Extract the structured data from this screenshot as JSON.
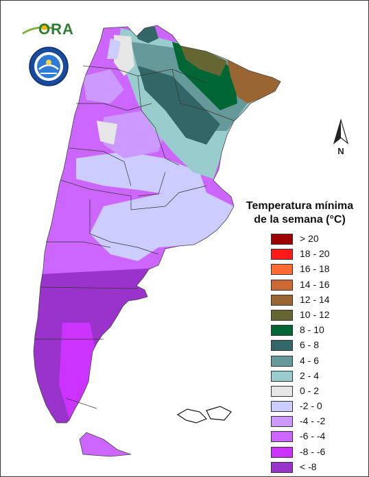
{
  "logos": {
    "ora": {
      "text": "ORA",
      "colors": {
        "text": "#2e7d32",
        "sun": "#f2b705"
      }
    },
    "smn": {
      "colors": {
        "ring": "#1a4a9c",
        "inner": "#2d7bd4"
      }
    }
  },
  "legend": {
    "title_line1": "Temperatura mínima",
    "title_line2": "de la semana (°C)",
    "items": [
      {
        "label": "> 20",
        "color": "#9c0000"
      },
      {
        "label": "18 - 20",
        "color": "#ff1a1a"
      },
      {
        "label": "16 - 18",
        "color": "#ff6a33"
      },
      {
        "label": "14 - 16",
        "color": "#cc6633"
      },
      {
        "label": "12 - 14",
        "color": "#996633"
      },
      {
        "label": "10 - 12",
        "color": "#666633"
      },
      {
        "label": "8 - 10",
        "color": "#006633"
      },
      {
        "label": "6 - 8",
        "color": "#336666"
      },
      {
        "label": "4 - 6",
        "color": "#669999"
      },
      {
        "label": "2 - 4",
        "color": "#99cccc"
      },
      {
        "label": "0 - 2",
        "color": "#e6e6e6"
      },
      {
        "label": "-2 - 0",
        "color": "#ccccff"
      },
      {
        "label": "-4 - -2",
        "color": "#cc99ff"
      },
      {
        "label": "-6 - -4",
        "color": "#cc66ff"
      },
      {
        "label": "-8 - -6",
        "color": "#cc33ff"
      },
      {
        "label": "< -8",
        "color": "#9933cc"
      }
    ]
  },
  "north_arrow": {
    "label": "N"
  }
}
